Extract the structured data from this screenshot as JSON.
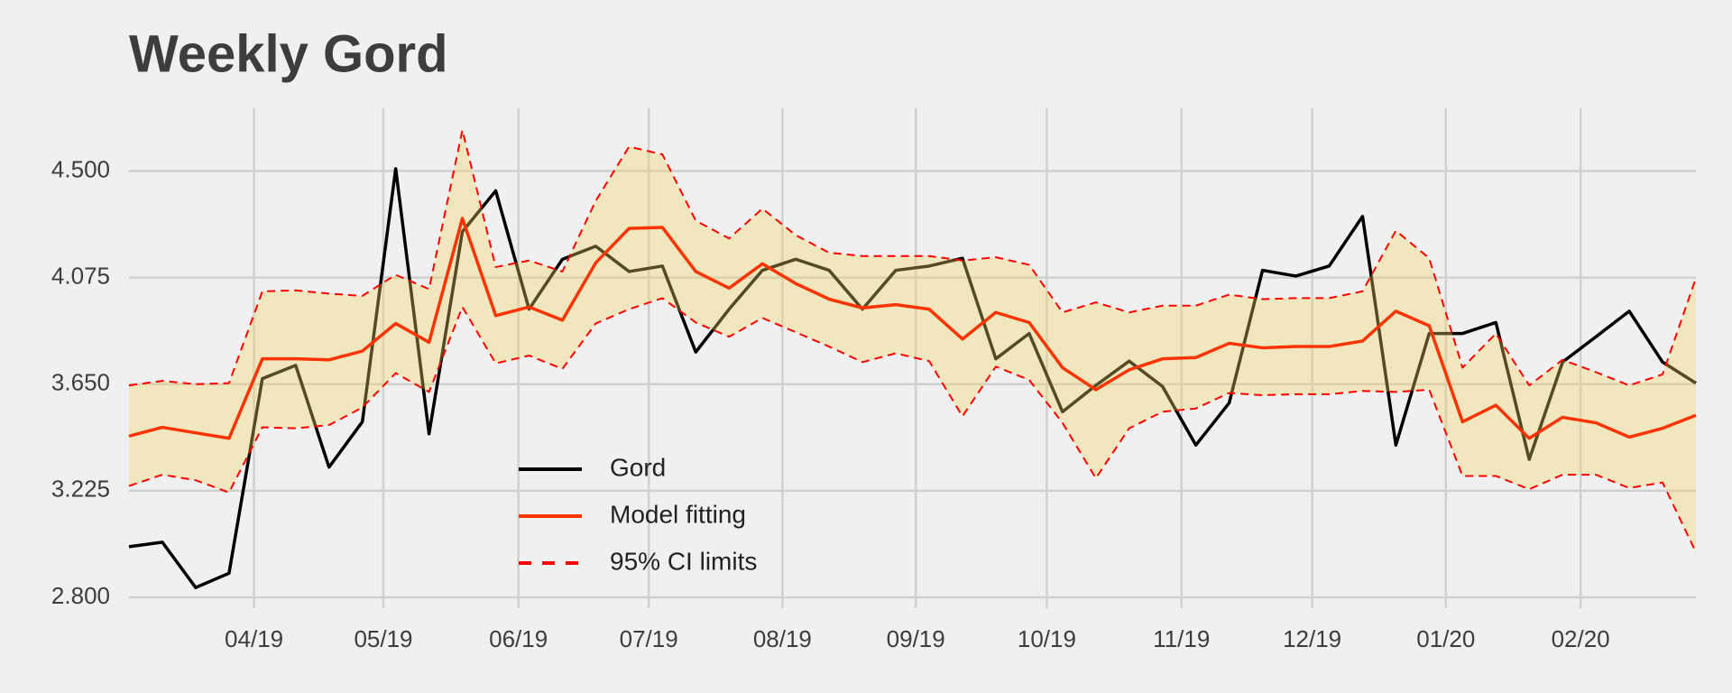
{
  "chart_data": {
    "type": "line",
    "title": "Weekly Gord",
    "x": [
      0,
      1,
      2,
      3,
      4,
      5,
      6,
      7,
      8,
      9,
      10,
      11,
      12,
      13,
      14,
      15,
      16,
      17,
      18,
      19,
      20,
      21,
      22,
      23,
      24,
      25,
      26,
      27,
      28,
      29,
      30,
      31,
      32,
      33,
      34,
      35,
      36,
      37,
      38,
      39,
      40,
      41,
      42,
      43,
      44,
      45,
      46,
      47
    ],
    "xlim": [
      0,
      47
    ],
    "xticks": [
      {
        "value": 3.75,
        "label": "04/19"
      },
      {
        "value": 7.63,
        "label": "05/19"
      },
      {
        "value": 11.68,
        "label": "06/19"
      },
      {
        "value": 15.59,
        "label": "07/19"
      },
      {
        "value": 19.6,
        "label": "08/19"
      },
      {
        "value": 23.6,
        "label": "09/19"
      },
      {
        "value": 27.53,
        "label": "10/19"
      },
      {
        "value": 31.57,
        "label": "11/19"
      },
      {
        "value": 35.49,
        "label": "12/19"
      },
      {
        "value": 39.5,
        "label": "01/20"
      },
      {
        "value": 43.54,
        "label": "02/20"
      }
    ],
    "ylim": [
      2.8,
      4.75
    ],
    "yticks": [
      {
        "value": 2.8,
        "label": "2.800"
      },
      {
        "value": 3.225,
        "label": "3.225"
      },
      {
        "value": 3.65,
        "label": "3.650"
      },
      {
        "value": 4.075,
        "label": "4.075"
      },
      {
        "value": 4.5,
        "label": "4.500"
      }
    ],
    "grid": true,
    "legend": "lower center",
    "series": [
      {
        "name": "Gord",
        "color": "#000000",
        "values": [
          3.002,
          3.02,
          2.839,
          2.896,
          3.672,
          3.725,
          3.319,
          3.5,
          4.509,
          3.452,
          4.258,
          4.421,
          3.949,
          4.148,
          4.2,
          4.099,
          4.121,
          3.778,
          3.949,
          4.104,
          4.148,
          4.104,
          3.949,
          4.104,
          4.121,
          4.152,
          3.751,
          3.852,
          3.54,
          3.645,
          3.742,
          3.641,
          3.407,
          3.575,
          4.104,
          4.081,
          4.121,
          4.319,
          3.407,
          3.852,
          3.852,
          3.896,
          3.35,
          3.738,
          3.839,
          3.941,
          3.738,
          3.654
        ]
      },
      {
        "name": "Model fitting",
        "color": "#ff3300",
        "values": [
          3.443,
          3.478,
          3.456,
          3.434,
          3.751,
          3.751,
          3.747,
          3.782,
          3.892,
          3.817,
          4.311,
          3.923,
          3.958,
          3.905,
          4.134,
          4.271,
          4.275,
          4.099,
          4.033,
          4.13,
          4.051,
          3.989,
          3.954,
          3.967,
          3.949,
          3.83,
          3.936,
          3.896,
          3.716,
          3.628,
          3.707,
          3.751,
          3.756,
          3.813,
          3.795,
          3.8,
          3.8,
          3.822,
          3.941,
          3.883,
          3.5,
          3.566,
          3.434,
          3.518,
          3.496,
          3.439,
          3.474,
          3.526
        ]
      }
    ],
    "ci": {
      "name": "95% CI limits",
      "color": "#ff0000",
      "band_color": "#f0d860",
      "upper": [
        3.645,
        3.663,
        3.65,
        3.654,
        4.02,
        4.024,
        4.011,
        4.002,
        4.086,
        4.029,
        4.663,
        4.117,
        4.143,
        4.099,
        4.381,
        4.597,
        4.566,
        4.302,
        4.231,
        4.35,
        4.244,
        4.174,
        4.161,
        4.161,
        4.161,
        4.143,
        4.156,
        4.126,
        3.936,
        3.976,
        3.936,
        3.963,
        3.963,
        4.007,
        3.989,
        3.993,
        3.993,
        4.02,
        4.262,
        4.152,
        3.716,
        3.852,
        3.645,
        3.747,
        3.698,
        3.645,
        3.689,
        4.073
      ],
      "lower": [
        3.244,
        3.289,
        3.267,
        3.218,
        3.478,
        3.474,
        3.487,
        3.557,
        3.694,
        3.619,
        3.958,
        3.733,
        3.764,
        3.711,
        3.892,
        3.949,
        3.993,
        3.896,
        3.839,
        3.914,
        3.857,
        3.8,
        3.738,
        3.773,
        3.742,
        3.522,
        3.72,
        3.667,
        3.496,
        3.275,
        3.474,
        3.54,
        3.553,
        3.615,
        3.606,
        3.61,
        3.61,
        3.623,
        3.619,
        3.628,
        3.284,
        3.284,
        3.231,
        3.289,
        3.289,
        3.236,
        3.258,
        2.98
      ]
    }
  }
}
